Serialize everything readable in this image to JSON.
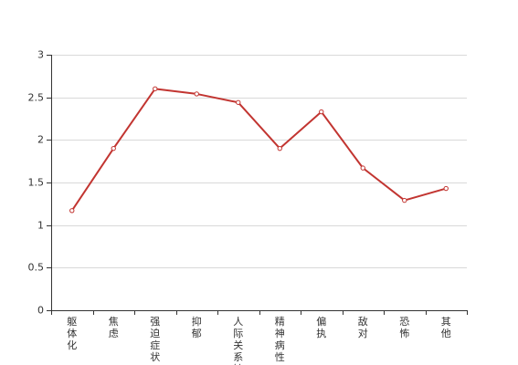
{
  "chart_data": {
    "type": "line",
    "categories": [
      "躯体化",
      "焦虑",
      "强迫症状",
      "抑郁",
      "人际关系敏",
      "精神病性",
      "偏执",
      "敌对",
      "恐怖",
      "其他"
    ],
    "series": [
      {
        "values": [
          1.17,
          1.9,
          2.6,
          2.54,
          2.44,
          1.9,
          2.33,
          1.67,
          1.29,
          1.43
        ]
      }
    ],
    "ylim": [
      0,
      3
    ],
    "yticks": [
      "0",
      "0.5",
      "1",
      "1.5",
      "2",
      "2.5",
      "3"
    ],
    "grid": true,
    "colors": {
      "line": "#c23531",
      "axis": "#333333",
      "grid": "#d9d9d9"
    }
  }
}
